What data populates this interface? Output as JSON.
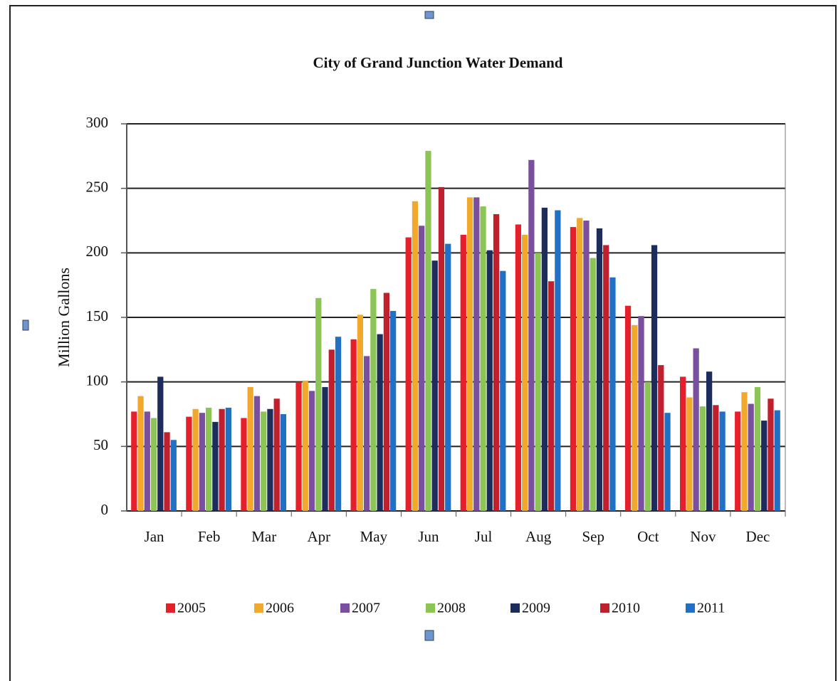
{
  "chart_data": {
    "type": "bar",
    "title": "City of Grand Junction Water Demand",
    "y_label": "Million Gallons",
    "categories": [
      "Jan",
      "Feb",
      "Mar",
      "Apr",
      "May",
      "Jun",
      "Jul",
      "Aug",
      "Sep",
      "Oct",
      "Nov",
      "Dec"
    ],
    "series": [
      {
        "name": "2005",
        "color": "#e5202a",
        "values": [
          77,
          73,
          72,
          100,
          133,
          212,
          214,
          222,
          220,
          159,
          104,
          77
        ]
      },
      {
        "name": "2006",
        "color": "#f2a82a",
        "values": [
          89,
          79,
          96,
          101,
          152,
          240,
          243,
          214,
          227,
          144,
          88,
          92
        ]
      },
      {
        "name": "2007",
        "color": "#7a4f9e",
        "values": [
          77,
          76,
          89,
          93,
          120,
          221,
          243,
          272,
          225,
          151,
          126,
          83
        ]
      },
      {
        "name": "2008",
        "color": "#8cc456",
        "values": [
          72,
          80,
          77,
          165,
          172,
          279,
          236,
          200,
          196,
          100,
          81,
          96
        ]
      },
      {
        "name": "2009",
        "color": "#1c2d5c",
        "values": [
          104,
          69,
          79,
          96,
          137,
          194,
          202,
          235,
          219,
          206,
          108,
          70
        ]
      },
      {
        "name": "2010",
        "color": "#c01f2d",
        "values": [
          61,
          79,
          87,
          125,
          169,
          251,
          230,
          178,
          206,
          113,
          82,
          87
        ]
      },
      {
        "name": "2011",
        "color": "#2070c6",
        "values": [
          55,
          80,
          75,
          135,
          155,
          207,
          186,
          233,
          181,
          76,
          77,
          78
        ]
      }
    ],
    "ylim": [
      0,
      300
    ],
    "yticks": [
      0,
      50,
      100,
      150,
      200,
      250,
      300
    ],
    "grid": true,
    "legend": "bottom"
  }
}
